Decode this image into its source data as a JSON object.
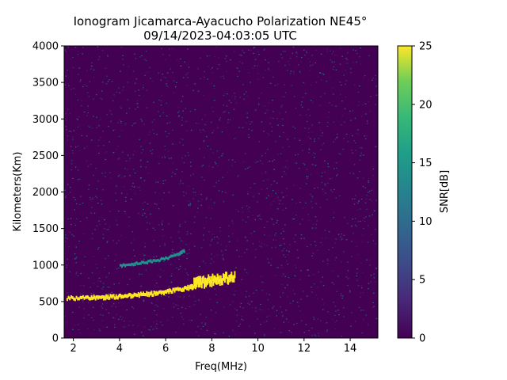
{
  "chart_data": {
    "type": "heatmap",
    "title": "Ionogram Jicamarca-Ayacucho Polarization NE45°",
    "subtitle": "09/14/2023-04:03:05 UTC",
    "xlabel": "Freq(MHz)",
    "ylabel": "Kilometers(Km)",
    "xlim": [
      1.6,
      15.2
    ],
    "ylim": [
      0,
      4000
    ],
    "x_ticks": [
      2,
      4,
      6,
      8,
      10,
      12,
      14
    ],
    "y_ticks": [
      0,
      500,
      1000,
      1500,
      2000,
      2500,
      3000,
      3500,
      4000
    ],
    "colorbar": {
      "label": "SNR[dB]",
      "range": [
        0,
        25
      ],
      "ticks": [
        0,
        5,
        10,
        15,
        20,
        25
      ],
      "colormap": "viridis"
    },
    "traces": [
      {
        "x": [
          1.7,
          2.5,
          3.0,
          3.5,
          4.0,
          4.5,
          5.0,
          5.5,
          6.0,
          6.5,
          7.0,
          7.2
        ],
        "y": [
          545,
          550,
          555,
          560,
          570,
          580,
          595,
          610,
          630,
          660,
          690,
          705
        ],
        "snr": 25
      },
      {
        "x": [
          7.2,
          7.5,
          8.0,
          8.5,
          9.0
        ],
        "y": [
          740,
          760,
          790,
          815,
          845
        ],
        "snr": 25
      },
      {
        "x": [
          4.0,
          4.5,
          5.0,
          5.5,
          6.0,
          6.5,
          6.8
        ],
        "y": [
          990,
          1010,
          1030,
          1060,
          1090,
          1140,
          1200
        ],
        "snr": 10
      }
    ],
    "background_snr": 0
  },
  "colors": {
    "background": "#440154",
    "accent_yellow": "#fde725",
    "accent_teal": "#21918c",
    "noise_blue": "#3b528b"
  }
}
